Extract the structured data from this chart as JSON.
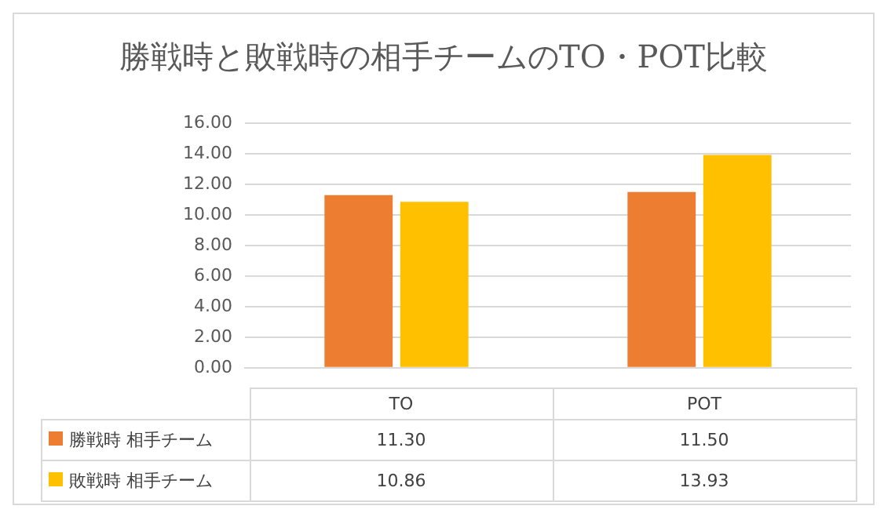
{
  "chart_data": {
    "type": "bar",
    "title": "勝戦時と敗戦時の相手チームのTO・POT比較",
    "categories": [
      "TO",
      "POT"
    ],
    "series": [
      {
        "name": "勝戦時 相手チーム",
        "color": "#ed7d31",
        "values": [
          11.3,
          11.5
        ],
        "value_labels": [
          "11.30",
          "11.50"
        ]
      },
      {
        "name": "敗戦時 相手チーム",
        "color": "#ffc000",
        "values": [
          10.86,
          13.93
        ],
        "value_labels": [
          "10.86",
          "13.93"
        ]
      }
    ],
    "ylim": [
      0,
      16
    ],
    "yticks": [
      {
        "value": 0,
        "label": "0.00"
      },
      {
        "value": 2,
        "label": "2.00"
      },
      {
        "value": 4,
        "label": "4.00"
      },
      {
        "value": 6,
        "label": "6.00"
      },
      {
        "value": 8,
        "label": "8.00"
      },
      {
        "value": 10,
        "label": "10.00"
      },
      {
        "value": 12,
        "label": "12.00"
      },
      {
        "value": 14,
        "label": "14.00"
      },
      {
        "value": 16,
        "label": "16.00"
      }
    ],
    "grid": "y",
    "legend": "bottom",
    "tick_labels": "y"
  }
}
